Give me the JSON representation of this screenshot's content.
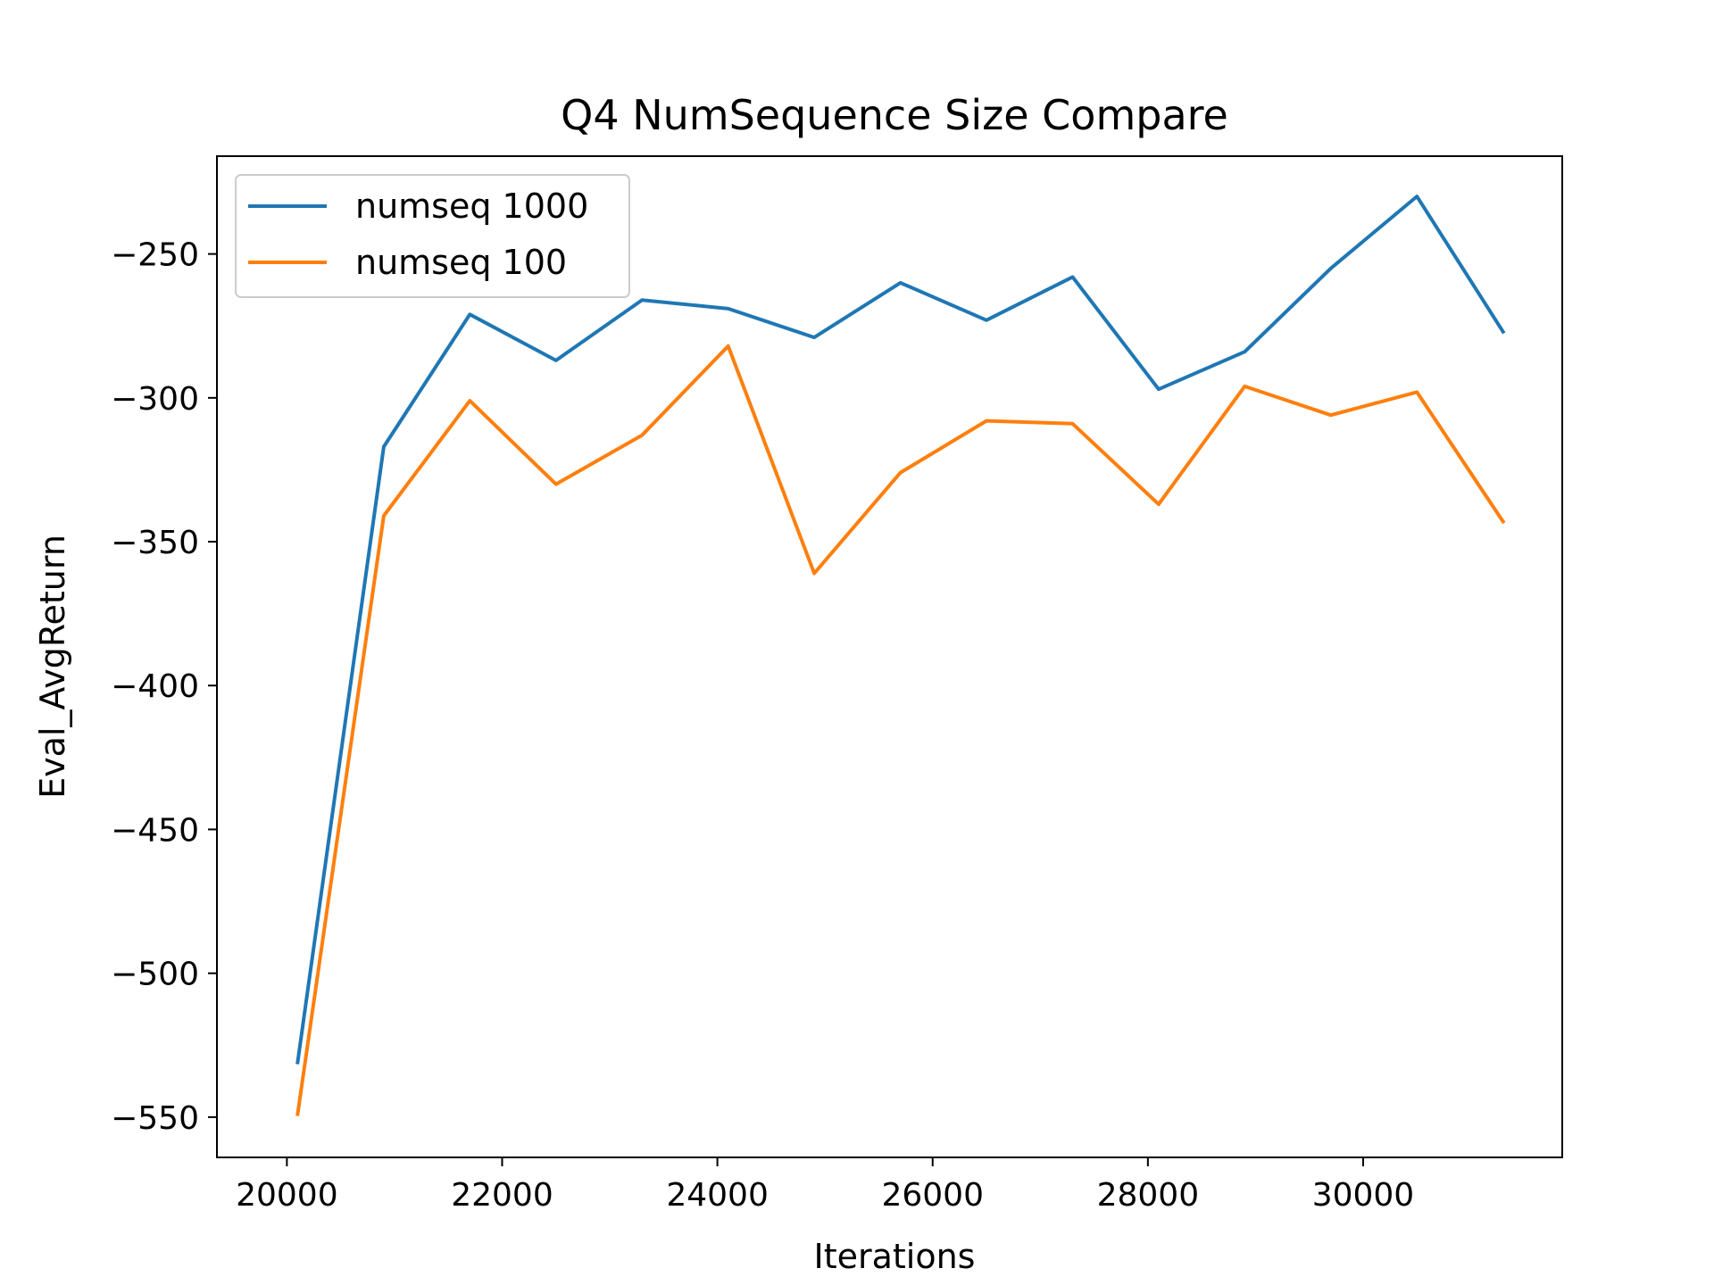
{
  "chart_data": {
    "type": "line",
    "title": "Q4 NumSequence Size Compare",
    "xlabel": "Iterations",
    "ylabel": "Eval_AvgReturn",
    "xlim": [
      19350,
      31850
    ],
    "ylim": [
      -564,
      -216
    ],
    "xticks": [
      20000,
      22000,
      24000,
      26000,
      28000,
      30000
    ],
    "yticks": [
      -250,
      -300,
      -350,
      -400,
      -450,
      -500,
      -550
    ],
    "xtick_labels": [
      "20000",
      "22000",
      "24000",
      "26000",
      "28000",
      "30000"
    ],
    "ytick_labels": [
      "−250",
      "−300",
      "−350",
      "−400",
      "−450",
      "−500",
      "−550"
    ],
    "grid": false,
    "legend_position": "upper-left",
    "x": [
      20100,
      20900,
      21700,
      22500,
      23300,
      24100,
      24900,
      25700,
      26500,
      27300,
      28100,
      28900,
      29700,
      30500,
      31300
    ],
    "series": [
      {
        "name": "numseq 1000",
        "color": "#1f77b4",
        "values": [
          -531,
          -317,
          -271,
          -287,
          -266,
          -269,
          -279,
          -260,
          -273,
          -258,
          -297,
          -284,
          -255,
          -230,
          -277
        ]
      },
      {
        "name": "numseq 100",
        "color": "#ff7f0e",
        "values": [
          -549,
          -341,
          -301,
          -330,
          -313,
          -282,
          -361,
          -326,
          -308,
          -309,
          -337,
          -296,
          -306,
          -298,
          -343
        ]
      }
    ]
  }
}
